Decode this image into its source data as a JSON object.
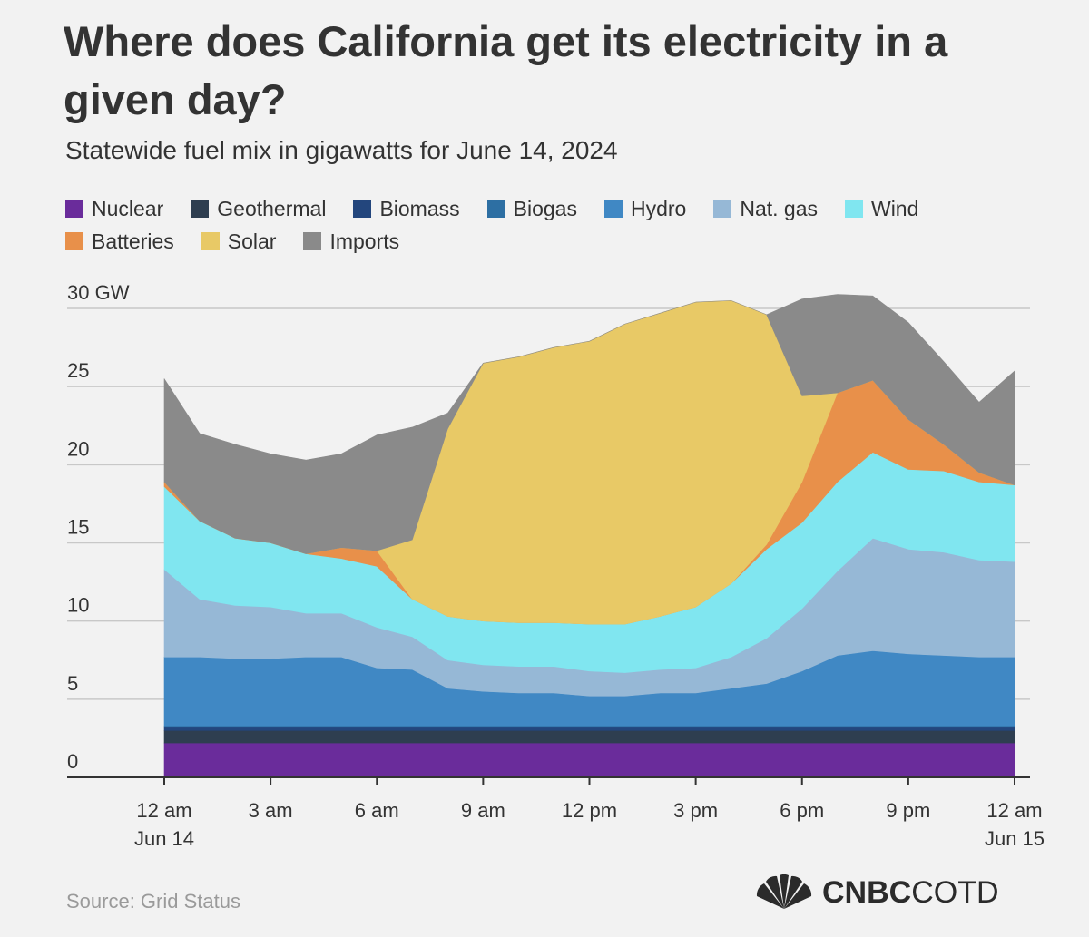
{
  "title": "Where does California get its electricity in a given day?",
  "subtitle": "Statewide fuel mix in gigawatts for June 14, 2024",
  "source": "Source: Grid Status",
  "brand": {
    "strong": "CNBC",
    "light": "COTD",
    "icon": "peacock-logo-icon"
  },
  "chart_data": {
    "type": "area",
    "stacked": true,
    "x_unit": "hour of day",
    "x": [
      0,
      1,
      2,
      3,
      4,
      5,
      6,
      7,
      8,
      9,
      10,
      11,
      12,
      13,
      14,
      15,
      16,
      17,
      18,
      19,
      20,
      21,
      22,
      23,
      24
    ],
    "ylim": [
      0,
      30
    ],
    "y_ticks": [
      {
        "value": 0,
        "label": "0"
      },
      {
        "value": 5,
        "label": "5"
      },
      {
        "value": 10,
        "label": "10"
      },
      {
        "value": 15,
        "label": "15"
      },
      {
        "value": 20,
        "label": "20"
      },
      {
        "value": 25,
        "label": "25"
      },
      {
        "value": 30,
        "label": "30 GW"
      }
    ],
    "x_ticks": [
      {
        "value": 0,
        "line1": "12 am",
        "line2": "Jun 14"
      },
      {
        "value": 3,
        "line1": "3 am",
        "line2": ""
      },
      {
        "value": 6,
        "line1": "6 am",
        "line2": ""
      },
      {
        "value": 9,
        "line1": "9 am",
        "line2": ""
      },
      {
        "value": 12,
        "line1": "12 pm",
        "line2": ""
      },
      {
        "value": 15,
        "line1": "3 pm",
        "line2": ""
      },
      {
        "value": 18,
        "line1": "6 pm",
        "line2": ""
      },
      {
        "value": 21,
        "line1": "9 pm",
        "line2": ""
      },
      {
        "value": 24,
        "line1": "12 am",
        "line2": "Jun 15"
      }
    ],
    "grid": true,
    "legend_position": "top",
    "series": [
      {
        "name": "Nuclear",
        "color": "#6a2c9b",
        "values": [
          2.2,
          2.2,
          2.2,
          2.2,
          2.2,
          2.2,
          2.2,
          2.2,
          2.2,
          2.2,
          2.2,
          2.2,
          2.2,
          2.2,
          2.2,
          2.2,
          2.2,
          2.2,
          2.2,
          2.2,
          2.2,
          2.2,
          2.2,
          2.2,
          2.2
        ]
      },
      {
        "name": "Geothermal",
        "color": "#2e3e50",
        "values": [
          0.8,
          0.8,
          0.8,
          0.8,
          0.8,
          0.8,
          0.8,
          0.8,
          0.8,
          0.8,
          0.8,
          0.8,
          0.8,
          0.8,
          0.8,
          0.8,
          0.8,
          0.8,
          0.8,
          0.8,
          0.8,
          0.8,
          0.8,
          0.8,
          0.8
        ]
      },
      {
        "name": "Biomass",
        "color": "#23467d",
        "values": [
          0.2,
          0.2,
          0.2,
          0.2,
          0.2,
          0.2,
          0.2,
          0.2,
          0.2,
          0.2,
          0.2,
          0.2,
          0.2,
          0.2,
          0.2,
          0.2,
          0.2,
          0.2,
          0.2,
          0.2,
          0.2,
          0.2,
          0.2,
          0.2,
          0.2
        ]
      },
      {
        "name": "Biogas",
        "color": "#2d6fa3",
        "values": [
          0.1,
          0.1,
          0.1,
          0.1,
          0.1,
          0.1,
          0.1,
          0.1,
          0.1,
          0.1,
          0.1,
          0.1,
          0.1,
          0.1,
          0.1,
          0.1,
          0.1,
          0.1,
          0.1,
          0.1,
          0.1,
          0.1,
          0.1,
          0.1,
          0.1
        ]
      },
      {
        "name": "Hydro",
        "color": "#4088c4",
        "values": [
          4.4,
          4.4,
          4.3,
          4.3,
          4.4,
          4.4,
          3.7,
          3.6,
          2.4,
          2.2,
          2.1,
          2.1,
          1.9,
          1.9,
          2.1,
          2.1,
          2.4,
          2.7,
          3.5,
          4.5,
          4.8,
          4.6,
          4.5,
          4.4,
          4.4
        ]
      },
      {
        "name": "Nat. gas",
        "color": "#96b8d6",
        "values": [
          5.6,
          3.7,
          3.4,
          3.3,
          2.8,
          2.8,
          2.6,
          2.1,
          1.8,
          1.7,
          1.7,
          1.7,
          1.6,
          1.5,
          1.5,
          1.6,
          2.0,
          2.9,
          4.0,
          5.4,
          7.2,
          6.7,
          6.6,
          6.2,
          6.1
        ]
      },
      {
        "name": "Wind",
        "color": "#80e6f0",
        "values": [
          5.3,
          5.0,
          4.3,
          4.1,
          3.8,
          3.5,
          3.9,
          2.4,
          2.8,
          2.8,
          2.8,
          2.8,
          3.0,
          3.1,
          3.4,
          3.9,
          4.7,
          5.7,
          5.5,
          5.7,
          5.5,
          5.1,
          5.2,
          5.0,
          4.9
        ]
      },
      {
        "name": "Batteries",
        "color": "#e8904a",
        "values": [
          0.3,
          0.0,
          0.0,
          0.0,
          0.0,
          0.7,
          1.0,
          0.0,
          0.0,
          0.0,
          0.0,
          0.0,
          0.0,
          0.0,
          0.0,
          0.0,
          0.0,
          0.3,
          2.6,
          5.7,
          4.6,
          3.2,
          1.7,
          0.6,
          0.0
        ]
      },
      {
        "name": "Solar",
        "color": "#e8c966",
        "values": [
          0.0,
          0.0,
          0.0,
          0.0,
          0.0,
          0.0,
          0.0,
          3.8,
          12.0,
          16.5,
          17.0,
          17.6,
          18.1,
          19.2,
          19.4,
          19.5,
          18.1,
          14.7,
          5.5,
          0.0,
          0.0,
          0.0,
          0.0,
          0.0,
          0.0
        ]
      },
      {
        "name": "Imports",
        "color": "#8a8a8a",
        "values": [
          6.6,
          5.6,
          6.0,
          5.7,
          6.0,
          6.0,
          7.4,
          7.2,
          1.0,
          0.0,
          0.0,
          0.0,
          0.0,
          0.0,
          0.0,
          0.0,
          0.0,
          0.0,
          6.2,
          6.3,
          5.4,
          6.2,
          5.3,
          4.5,
          7.3
        ]
      }
    ]
  }
}
